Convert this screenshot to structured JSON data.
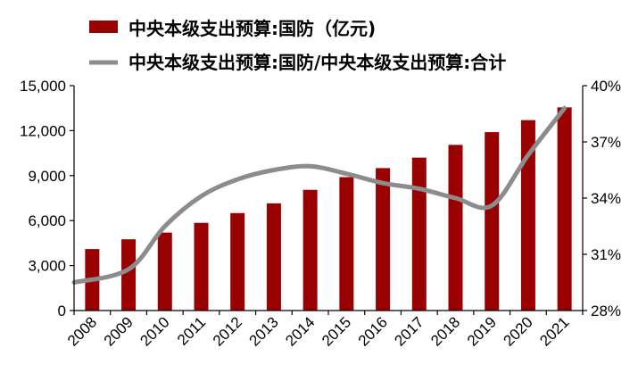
{
  "chart_data": {
    "type": "bar+line",
    "categories": [
      "2008",
      "2009",
      "2010",
      "2011",
      "2012",
      "2013",
      "2014",
      "2015",
      "2016",
      "2017",
      "2018",
      "2019",
      "2020",
      "2021"
    ],
    "series": [
      {
        "name": "中央本级支出预算:国防（亿元)",
        "type": "bar",
        "axis": "left",
        "color": "#990000",
        "values": [
          4100,
          4750,
          5200,
          5850,
          6500,
          7150,
          8050,
          8900,
          9500,
          10200,
          11050,
          11900,
          12700,
          13550
        ]
      },
      {
        "name": "中央本级支出预算:国防/中央本级支出预算:合计",
        "type": "line",
        "axis": "right",
        "color": "#8c8c8c",
        "values": [
          29.5,
          30.2,
          32.5,
          34.1,
          35.0,
          35.5,
          35.7,
          35.3,
          34.8,
          34.5,
          34.0,
          33.6,
          36.3,
          38.8
        ]
      }
    ],
    "y_left": {
      "min": 0,
      "max": 15000,
      "ticks": [
        "0",
        "3,000",
        "6,000",
        "9,000",
        "12,000",
        "15,000"
      ],
      "tick_values": [
        0,
        3000,
        6000,
        9000,
        12000,
        15000
      ]
    },
    "y_right": {
      "min": 28,
      "max": 40,
      "ticks": [
        "28%",
        "31%",
        "34%",
        "37%",
        "40%"
      ],
      "tick_values": [
        28,
        31,
        34,
        37,
        40
      ]
    },
    "legend": {
      "position": "top",
      "items": [
        {
          "label": "中央本级支出预算:国防（亿元)",
          "marker": "bar",
          "color": "#990000"
        },
        {
          "label": "中央本级支出预算:国防/中央本级支出预算:合计",
          "marker": "line",
          "color": "#8c8c8c"
        }
      ]
    },
    "grid": false
  }
}
